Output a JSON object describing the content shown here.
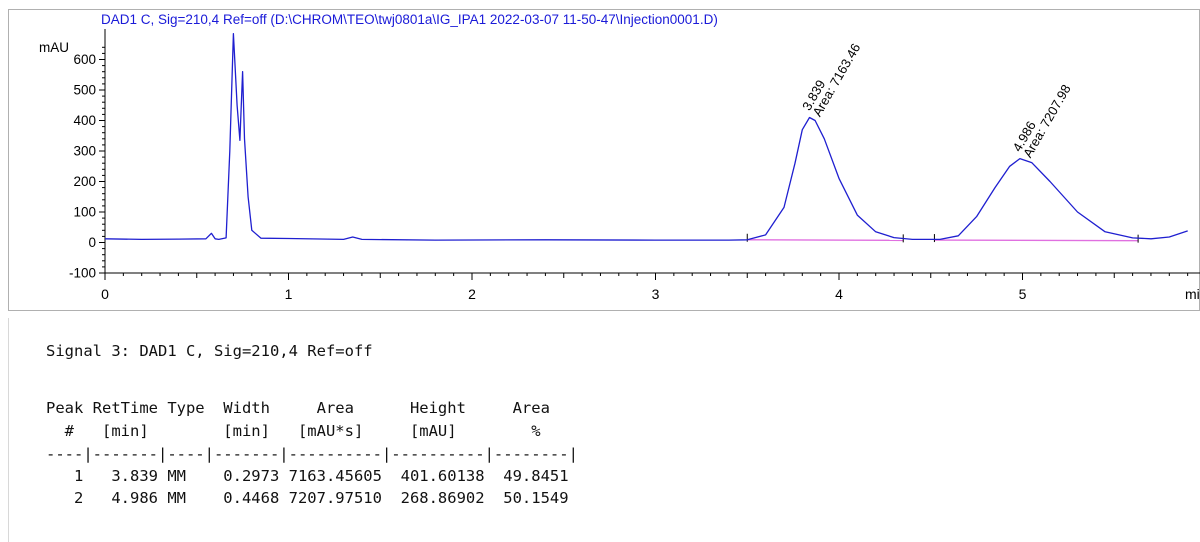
{
  "chart_data": {
    "type": "line",
    "title": "DAD1 C, Sig=210,4 Ref=off (D:\\CHROM\\TEO\\twj0801a\\IG_IPA1 2022-03-07 11-50-47\\Injection0001.D)",
    "ylabel": "mAU",
    "xlabel": "mi",
    "xlim": [
      0,
      5.9
    ],
    "ylim": [
      -100,
      700
    ],
    "x_ticks": [
      0,
      1,
      2,
      3,
      4,
      5
    ],
    "y_ticks": [
      -100,
      0,
      100,
      200,
      300,
      400,
      500,
      600
    ],
    "series": [
      {
        "color": "#1f1fd0",
        "x": [
          0,
          0.2,
          0.4,
          0.55,
          0.58,
          0.6,
          0.62,
          0.66,
          0.68,
          0.7,
          0.72,
          0.735,
          0.75,
          0.76,
          0.78,
          0.8,
          0.85,
          1.0,
          1.3,
          1.35,
          1.4,
          1.8,
          2.4,
          3.0,
          3.4,
          3.5,
          3.6,
          3.7,
          3.76,
          3.8,
          3.839,
          3.87,
          3.92,
          4.0,
          4.1,
          4.2,
          4.3,
          4.4,
          4.55,
          4.65,
          4.75,
          4.85,
          4.93,
          4.986,
          5.05,
          5.15,
          5.3,
          5.45,
          5.6,
          5.7,
          5.8,
          5.9
        ],
        "y": [
          12,
          10,
          11,
          12,
          30,
          12,
          10,
          15,
          300,
          685,
          450,
          335,
          560,
          340,
          150,
          40,
          14,
          13,
          10,
          18,
          10,
          8,
          9,
          8,
          8,
          9,
          25,
          115,
          260,
          370,
          410,
          400,
          340,
          210,
          90,
          35,
          16,
          10,
          10,
          22,
          85,
          180,
          250,
          275,
          262,
          200,
          100,
          35,
          15,
          12,
          18,
          38
        ]
      }
    ],
    "baseline": {
      "color": "#e070e0",
      "segments": [
        {
          "x": [
            3.5,
            4.35
          ],
          "y": [
            9,
            7
          ]
        },
        {
          "x": [
            4.52,
            5.63
          ],
          "y": [
            8,
            6
          ]
        }
      ]
    },
    "peak_labels": [
      {
        "x": 3.839,
        "y": 410,
        "rt": "3.839",
        "area": "Area: 7163.46"
      },
      {
        "x": 4.986,
        "y": 275,
        "rt": "4.986",
        "area": "Area: 7207.98"
      }
    ]
  },
  "report": {
    "signal_line": "Signal 3: DAD1 C, Sig=210,4 Ref=off",
    "header_line1": "Peak RetTime Type  Width     Area      Height     Area",
    "header_line2": "  #   [min]        [min]   [mAU*s]     [mAU]        %",
    "separator": "----|-------|----|-------|----------|----------|--------|",
    "rows": [
      "   1   3.839 MM    0.2973 7163.45605  401.60138  49.8451",
      "   2   4.986 MM    0.4468 7207.97510  268.86902  50.1549"
    ]
  }
}
